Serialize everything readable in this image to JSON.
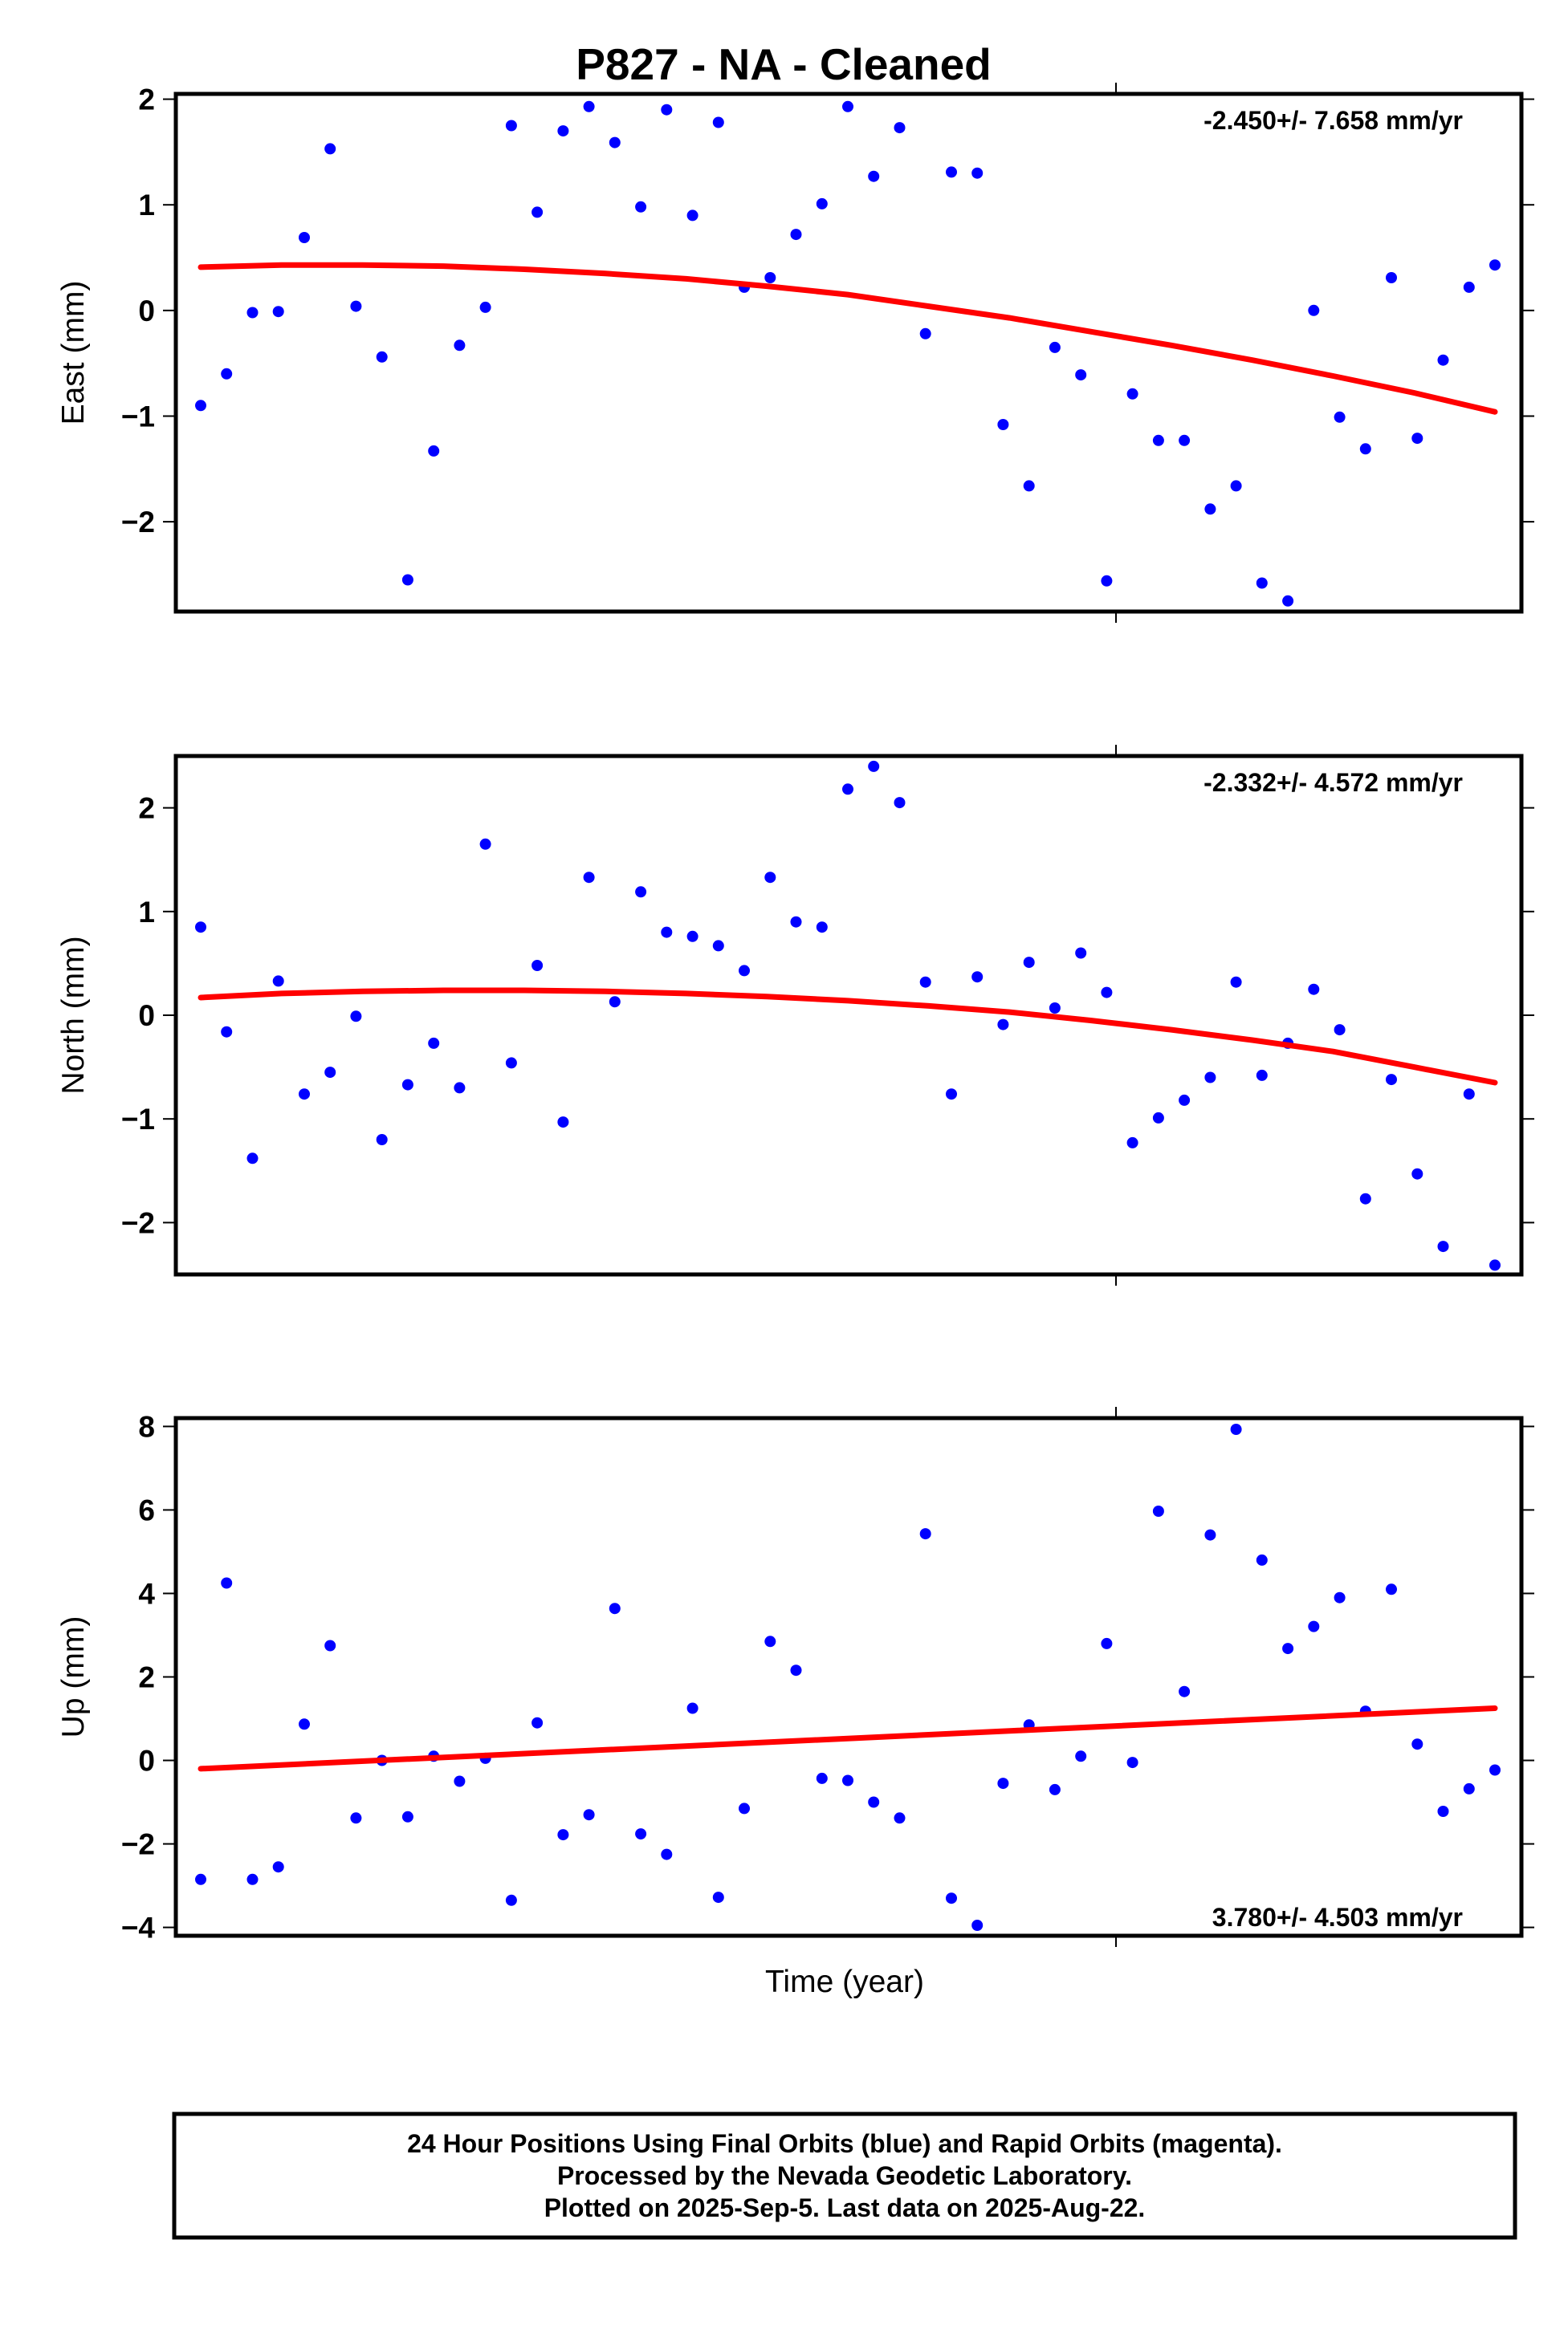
{
  "chart_title": "P827  - NA - Cleaned",
  "xlabel": "Time (year)",
  "colors": {
    "points": "#0000ff",
    "fit": "#ff0000",
    "frame": "#000000"
  },
  "footer": {
    "line1": "24 Hour Positions Using Final Orbits (blue) and Rapid Orbits (magenta).",
    "line2": "Processed by the Nevada Geodetic Laboratory.",
    "line3": "Plotted on 2025-Sep-5. Last data on 2025-Aug-22."
  },
  "chart_data": [
    {
      "type": "scatter",
      "title": "",
      "ylabel": "East (mm)",
      "rate_label": "-2.450+/- 7.658 mm/yr",
      "ylim": [
        -2.85,
        2.05
      ],
      "yticks": [
        2,
        1,
        0,
        -1,
        -2
      ],
      "ytick_labels": [
        "2",
        "1",
        "0",
        "−1",
        "−2"
      ],
      "legend": "none",
      "grid": false,
      "series": [
        {
          "marker": "dot",
          "values": [
            -0.9,
            -0.6,
            -0.02,
            -0.01,
            0.69,
            1.53,
            0.04,
            -0.44,
            -2.55,
            -1.33,
            -0.33,
            0.03,
            1.75,
            0.93,
            1.7,
            1.93,
            1.59,
            0.98,
            1.9,
            0.9,
            1.78,
            0.22,
            0.31,
            0.72,
            1.01,
            1.93,
            1.27,
            1.73,
            -0.22,
            1.31,
            1.3,
            -1.08,
            -1.66,
            -0.35,
            -0.61,
            -2.56,
            -0.79,
            -1.23,
            -1.23,
            -1.88,
            -1.66,
            -2.58,
            -2.75,
            0.0,
            -1.01,
            -1.31,
            0.31,
            -1.21,
            -0.47,
            0.22,
            0.43
          ]
        },
        {
          "marker": "line",
          "values": [
            0.41,
            0.43,
            0.43,
            0.42,
            0.39,
            0.35,
            0.3,
            0.23,
            0.15,
            0.04,
            -0.07,
            -0.2,
            -0.33,
            -0.47,
            -0.62,
            -0.78,
            -0.96
          ]
        }
      ]
    },
    {
      "type": "scatter",
      "title": "",
      "ylabel": "North (mm)",
      "rate_label": "-2.332+/- 4.572 mm/yr",
      "ylim": [
        -2.5,
        2.5
      ],
      "yticks": [
        2,
        1,
        0,
        -1,
        -2
      ],
      "ytick_labels": [
        "2",
        "1",
        "0",
        "−1",
        "−2"
      ],
      "legend": "none",
      "grid": false,
      "series": [
        {
          "marker": "dot",
          "values": [
            0.85,
            -0.16,
            -1.38,
            0.33,
            -0.76,
            -0.55,
            -0.01,
            -1.2,
            -0.67,
            -0.27,
            -0.7,
            1.65,
            -0.46,
            0.48,
            -1.03,
            1.33,
            0.13,
            1.19,
            0.8,
            0.76,
            0.67,
            0.43,
            1.33,
            0.9,
            0.85,
            2.18,
            2.4,
            2.05,
            0.32,
            -0.76,
            0.37,
            -0.09,
            0.51,
            0.07,
            0.6,
            0.22,
            -1.23,
            -0.99,
            -0.82,
            -0.6,
            0.32,
            -0.58,
            -0.27,
            0.25,
            -0.14,
            -1.77,
            -0.62,
            -1.53,
            -2.23,
            -0.76,
            -2.41
          ]
        },
        {
          "marker": "line",
          "values": [
            0.17,
            0.21,
            0.23,
            0.24,
            0.24,
            0.23,
            0.21,
            0.18,
            0.14,
            0.09,
            0.03,
            -0.05,
            -0.14,
            -0.24,
            -0.35,
            -0.5,
            -0.65
          ]
        }
      ]
    },
    {
      "type": "scatter",
      "title": "",
      "ylabel": "Up (mm)",
      "rate_label": "3.780+/- 4.503 mm/yr",
      "ylim": [
        -4.2,
        8.2
      ],
      "yticks": [
        8,
        6,
        4,
        2,
        0,
        -2,
        -4
      ],
      "ytick_labels": [
        "8",
        "6",
        "4",
        "2",
        "0",
        "−2",
        "−4"
      ],
      "legend": "none",
      "grid": false,
      "series": [
        {
          "marker": "dot",
          "values": [
            -2.85,
            4.25,
            -2.85,
            -2.55,
            0.87,
            2.75,
            -1.38,
            0.0,
            -1.35,
            0.1,
            -0.5,
            0.05,
            -3.35,
            0.9,
            -1.78,
            -1.3,
            3.64,
            -1.76,
            -2.25,
            1.25,
            -3.28,
            -1.15,
            2.85,
            2.16,
            -0.43,
            -0.48,
            -1.0,
            -1.38,
            5.43,
            -3.3,
            -3.95,
            -0.55,
            0.85,
            -0.7,
            0.1,
            2.8,
            -0.05,
            5.97,
            1.65,
            5.4,
            7.93,
            4.8,
            2.68,
            3.21,
            3.9,
            1.18,
            4.1,
            0.39,
            -1.22,
            -0.68,
            -0.23
          ]
        },
        {
          "marker": "line",
          "values": [
            -0.2,
            1.25
          ]
        }
      ]
    }
  ]
}
